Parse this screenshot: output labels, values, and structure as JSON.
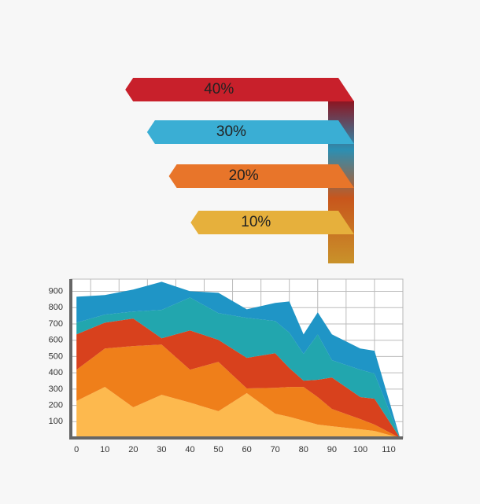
{
  "chart_data": [
    {
      "type": "bar",
      "orientation": "horizontal",
      "categories": [
        null,
        null,
        null,
        null
      ],
      "values": [
        40,
        30,
        20,
        10
      ],
      "value_labels": [
        "40%",
        "30%",
        "20%",
        "10%"
      ],
      "colors": [
        "#c8202b",
        "#3aaed4",
        "#e8752a",
        "#e6b03c"
      ]
    },
    {
      "type": "area",
      "stacked": true,
      "grid": true,
      "x": [
        0,
        10,
        20,
        30,
        40,
        50,
        60,
        70,
        75,
        80,
        85,
        90,
        100,
        105,
        114
      ],
      "xlim": [
        -2,
        115
      ],
      "xticks": [
        0,
        10,
        20,
        30,
        40,
        50,
        60,
        70,
        80,
        90,
        100,
        110
      ],
      "ylim": [
        0,
        975
      ],
      "yticks": [
        100,
        200,
        300,
        400,
        500,
        600,
        700,
        800,
        900
      ],
      "series": [
        {
          "color": "#fdb94e",
          "values": [
            227,
            313,
            188,
            265,
            217,
            164,
            275,
            149,
            130,
            106,
            82,
            72,
            53,
            43,
            0
          ]
        },
        {
          "color": "#ef7f1a",
          "values": [
            192,
            236,
            376,
            308,
            202,
            303,
            29,
            159,
            183,
            207,
            169,
            106,
            63,
            39,
            0
          ]
        },
        {
          "color": "#d8411d",
          "values": [
            217,
            159,
            169,
            39,
            241,
            135,
            188,
            212,
            116,
            39,
            106,
            193,
            135,
            159,
            0
          ]
        },
        {
          "color": "#22a6ae",
          "values": [
            72,
            49,
            43,
            174,
            202,
            164,
            245,
            198,
            217,
            164,
            279,
            106,
            168,
            154,
            0
          ]
        },
        {
          "color": "#1f95c6",
          "values": [
            159,
            120,
            135,
            173,
            39,
            125,
            53,
            111,
            192,
            120,
            135,
            159,
            130,
            140,
            0
          ]
        }
      ]
    }
  ]
}
